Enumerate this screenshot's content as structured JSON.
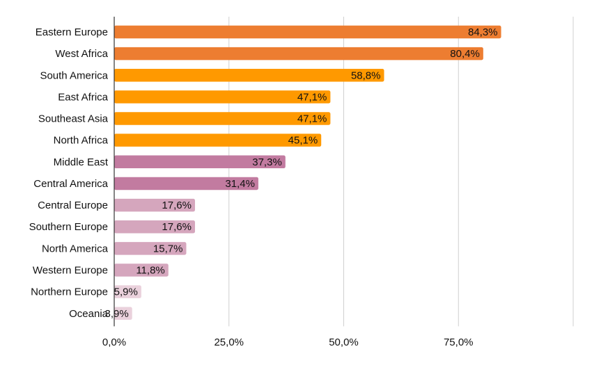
{
  "chart_data": {
    "type": "bar",
    "orientation": "horizontal",
    "title": "",
    "xlabel": "",
    "ylabel": "",
    "xlim": [
      0,
      100
    ],
    "x_ticks": [
      {
        "value": 0,
        "label": "0,0%"
      },
      {
        "value": 25,
        "label": "25,0%"
      },
      {
        "value": 50,
        "label": "50,0%"
      },
      {
        "value": 75,
        "label": "75,0%"
      }
    ],
    "grid": "vertical",
    "legend": "none",
    "categories": [
      "Eastern Europe",
      "West Africa",
      "South America",
      "East Africa",
      "Southeast Asia",
      "North Africa",
      "Middle East",
      "Central America",
      "Central Europe",
      "Southern Europe",
      "North America",
      "Western Europe",
      "Northern Europe",
      "Oceania"
    ],
    "values": [
      84.3,
      80.4,
      58.8,
      47.1,
      47.1,
      45.1,
      37.3,
      31.4,
      17.6,
      17.6,
      15.7,
      11.8,
      5.9,
      3.9
    ],
    "value_labels": [
      "84,3%",
      "80,4%",
      "58,8%",
      "47,1%",
      "47,1%",
      "45,1%",
      "37,3%",
      "31,4%",
      "17,6%",
      "17,6%",
      "15,7%",
      "11,8%",
      "5,9%",
      "3,9%"
    ],
    "bar_colors": [
      "#ed7d31",
      "#ed7d31",
      "#ff9900",
      "#ff9900",
      "#ff9900",
      "#ff9900",
      "#c27ba0",
      "#c27ba0",
      "#d5a6bd",
      "#d5a6bd",
      "#d5a6bd",
      "#d5a6bd",
      "#ead1dc",
      "#ead1dc"
    ]
  }
}
